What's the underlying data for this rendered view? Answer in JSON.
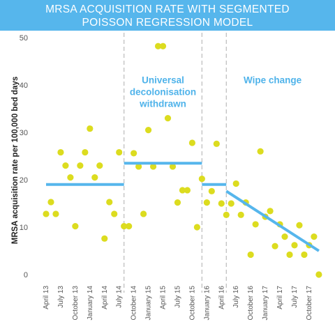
{
  "chart_data": {
    "type": "scatter",
    "title": "MRSA ACQUISITION RATE WITH SEGMENTED POISSON REGRESSION MODEL",
    "title_lines": [
      "MRSA ACQUISITION RATE WITH SEGMENTED",
      "POISSON REGRESSION MODEL"
    ],
    "xlabel": "",
    "ylabel": "MRSA acquisition rate per 100,000 bed days",
    "ylim": [
      0,
      50
    ],
    "yticks": [
      0,
      10,
      20,
      30,
      40,
      50
    ],
    "grid": false,
    "x_ticks": [
      {
        "label": "April 13",
        "index": 0
      },
      {
        "label": "July 13",
        "index": 3
      },
      {
        "label": "October 13",
        "index": 6
      },
      {
        "label": "January 14",
        "index": 9
      },
      {
        "label": "April 14",
        "index": 12
      },
      {
        "label": "July 14",
        "index": 15
      },
      {
        "label": "October 14",
        "index": 18
      },
      {
        "label": "January 15",
        "index": 21
      },
      {
        "label": "April 15",
        "index": 24
      },
      {
        "label": "July 15",
        "index": 27
      },
      {
        "label": "October 15",
        "index": 30
      },
      {
        "label": "January 16",
        "index": 33
      },
      {
        "label": "April 16",
        "index": 36
      },
      {
        "label": "July 16",
        "index": 39
      },
      {
        "label": "October 16",
        "index": 42
      },
      {
        "label": "January 17",
        "index": 45
      },
      {
        "label": "April 17",
        "index": 48
      },
      {
        "label": "July 17",
        "index": 51
      },
      {
        "label": "October 17",
        "index": 54
      }
    ],
    "points": [
      {
        "x": 0,
        "y": 12.8
      },
      {
        "x": 1,
        "y": 15.3
      },
      {
        "x": 2,
        "y": 12.8
      },
      {
        "x": 3,
        "y": 25.8
      },
      {
        "x": 4,
        "y": 23.0
      },
      {
        "x": 5,
        "y": 20.5
      },
      {
        "x": 6,
        "y": 10.2
      },
      {
        "x": 7,
        "y": 23.0
      },
      {
        "x": 8,
        "y": 25.8
      },
      {
        "x": 9,
        "y": 30.8
      },
      {
        "x": 10,
        "y": 20.5
      },
      {
        "x": 11,
        "y": 23.0
      },
      {
        "x": 12,
        "y": 7.6
      },
      {
        "x": 13,
        "y": 15.3
      },
      {
        "x": 14,
        "y": 12.8
      },
      {
        "x": 15,
        "y": 25.8
      },
      {
        "x": 16,
        "y": 10.2
      },
      {
        "x": 17,
        "y": 10.2
      },
      {
        "x": 18,
        "y": 25.6
      },
      {
        "x": 19,
        "y": 22.8
      },
      {
        "x": 20,
        "y": 12.8
      },
      {
        "x": 21,
        "y": 30.5
      },
      {
        "x": 22,
        "y": 22.8
      },
      {
        "x": 23,
        "y": 48.2
      },
      {
        "x": 24,
        "y": 48.2
      },
      {
        "x": 25,
        "y": 33.0
      },
      {
        "x": 26,
        "y": 22.8
      },
      {
        "x": 27,
        "y": 15.2
      },
      {
        "x": 28,
        "y": 17.8
      },
      {
        "x": 29,
        "y": 17.8
      },
      {
        "x": 30,
        "y": 27.8
      },
      {
        "x": 31,
        "y": 10.0
      },
      {
        "x": 32,
        "y": 20.2
      },
      {
        "x": 33,
        "y": 15.2
      },
      {
        "x": 34,
        "y": 17.6
      },
      {
        "x": 35,
        "y": 27.6
      },
      {
        "x": 36,
        "y": 15.0
      },
      {
        "x": 37,
        "y": 12.6
      },
      {
        "x": 38,
        "y": 15.0
      },
      {
        "x": 39,
        "y": 19.2
      },
      {
        "x": 40,
        "y": 12.6
      },
      {
        "x": 41,
        "y": 15.2
      },
      {
        "x": 42,
        "y": 4.2
      },
      {
        "x": 43,
        "y": 10.6
      },
      {
        "x": 44,
        "y": 26.0
      },
      {
        "x": 45,
        "y": 12.2
      },
      {
        "x": 46,
        "y": 13.4
      },
      {
        "x": 47,
        "y": 6.0
      },
      {
        "x": 48,
        "y": 10.6
      },
      {
        "x": 49,
        "y": 8.0
      },
      {
        "x": 50,
        "y": 4.2
      },
      {
        "x": 51,
        "y": 6.2
      },
      {
        "x": 52,
        "y": 10.4
      },
      {
        "x": 53,
        "y": 4.2
      },
      {
        "x": 54,
        "y": 6.2
      },
      {
        "x": 55,
        "y": 8.0
      },
      {
        "x": 56,
        "y": 0.0
      }
    ],
    "model_segments": [
      {
        "x_start": 0,
        "x_end": 16,
        "y_start": 19.0,
        "y_end": 19.0
      },
      {
        "x_start": 16,
        "x_end": 32,
        "y_start": 23.5,
        "y_end": 23.5
      },
      {
        "x_start": 32,
        "x_end": 37,
        "y_start": 19.0,
        "y_end": 19.0
      },
      {
        "x_start": 37,
        "x_end": 56,
        "y_start": 17.6,
        "y_end": 5.0
      }
    ],
    "phase_breaks": [
      16,
      32,
      37
    ],
    "annotations": [
      {
        "lines": [
          "Universal",
          "decolonisation",
          "withdrawn"
        ],
        "x": 24,
        "y": 39.5
      },
      {
        "lines": [
          "Wipe change"
        ],
        "x": 46.5,
        "y": 39.5
      }
    ],
    "colors": {
      "points": "#dcdc1f",
      "model_line": "#56b6ec",
      "title_bar": "#56b6ec",
      "annotation": "#4fb3ea",
      "divider": "#bbbbbb"
    }
  }
}
